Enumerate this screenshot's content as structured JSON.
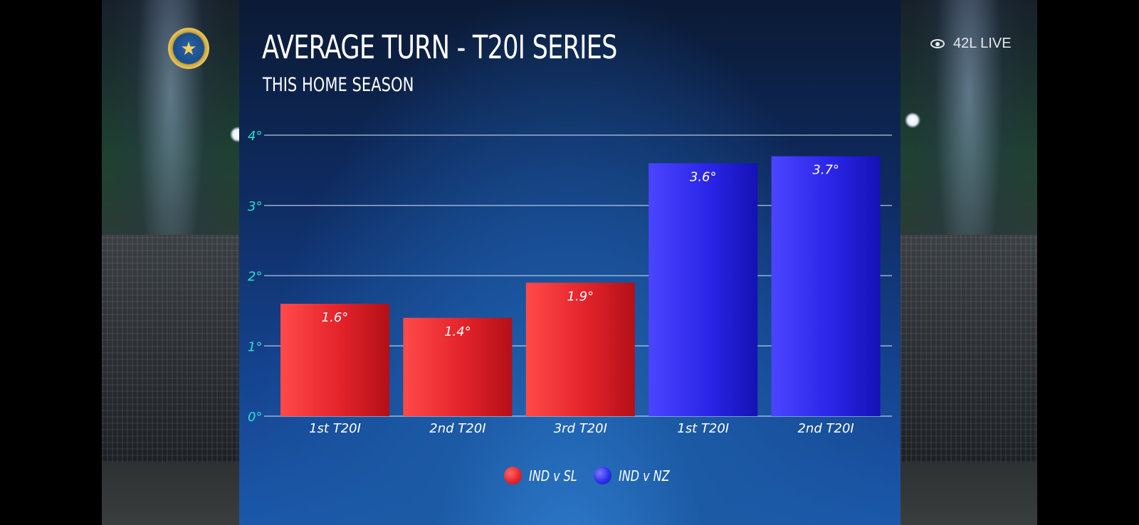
{
  "header": {
    "title": "AVERAGE TURN - T20I SERIES",
    "subtitle": "THIS HOME SEASON"
  },
  "overlay": {
    "viewer_count": "42L LIVE",
    "viewer_icon": "eye-icon",
    "logo_icon": "bcci-crest-icon"
  },
  "chart_data": {
    "type": "bar",
    "categories": [
      "1st T20I",
      "2nd T20I",
      "3rd T20I",
      "1st T20I",
      "2nd T20I"
    ],
    "values": [
      1.6,
      1.4,
      1.9,
      3.6,
      3.7
    ],
    "value_labels": [
      "1.6°",
      "1.4°",
      "1.9°",
      "3.6°",
      "3.7°"
    ],
    "series": [
      {
        "name": "IND v SL",
        "indices": [
          0,
          1,
          2
        ],
        "color": "#e8262d"
      },
      {
        "name": "IND v NZ",
        "indices": [
          3,
          4
        ],
        "color": "#2f2ff0"
      }
    ],
    "yticks": [
      "0°",
      "1°",
      "2°",
      "3°",
      "4°"
    ],
    "ylim": [
      0,
      4
    ],
    "grid": true,
    "legend_position": "bottom-center",
    "title": "AVERAGE TURN - T20I SERIES",
    "subtitle": "THIS HOME SEASON"
  }
}
